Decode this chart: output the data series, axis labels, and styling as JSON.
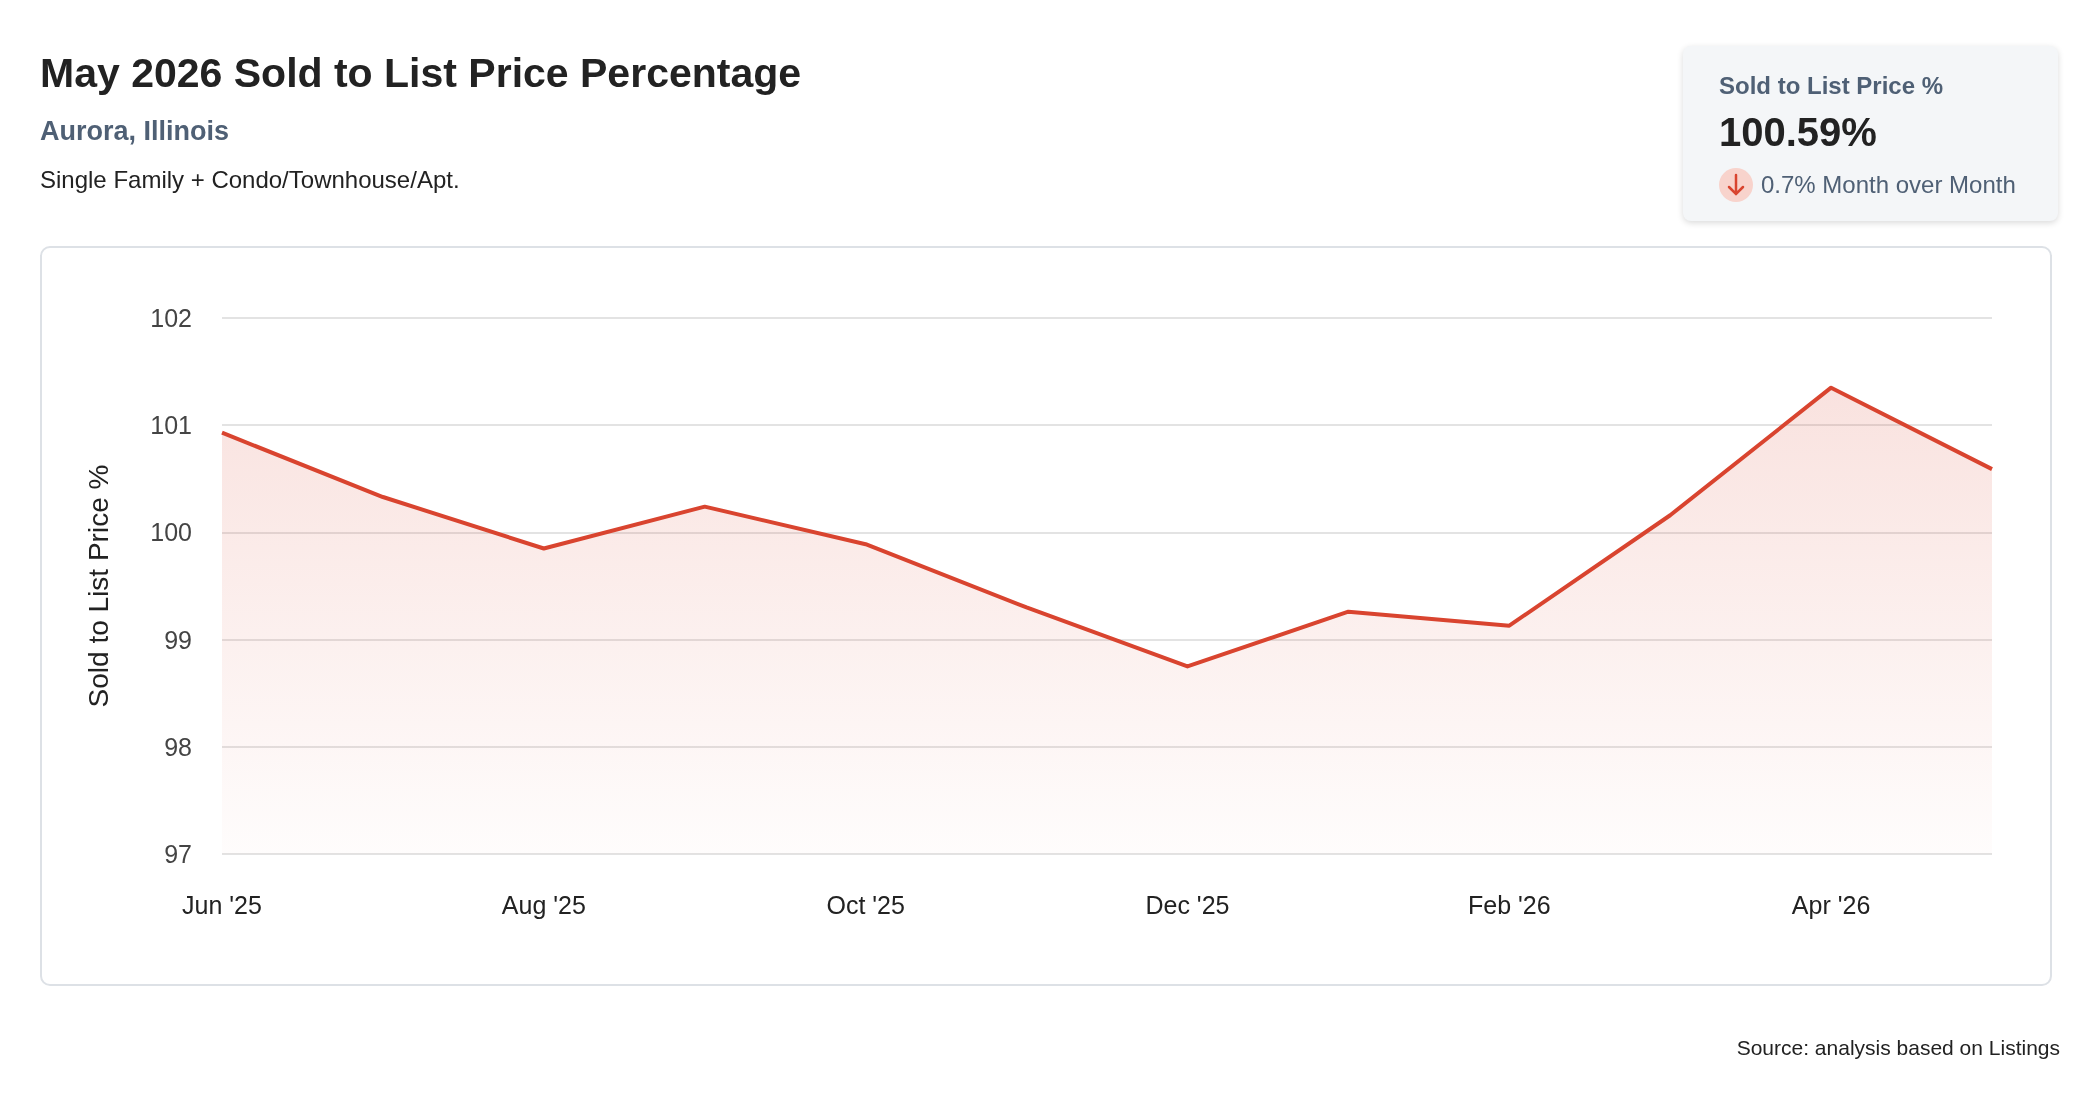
{
  "chart_data": {
    "type": "area",
    "title": "May 2026 Sold to List Price Percentage",
    "subtitle": "Aurora, Illinois",
    "annotations": [
      "Single Family + Condo/Townhouse/Apt.",
      "Sold to List Price %",
      "100.59%",
      "0.7% Month over Month",
      "Source: analysis based on Listings"
    ],
    "ylabel": "Sold to List Price %",
    "categories": [
      "Jun '25",
      null,
      "Aug '25",
      null,
      "Oct '25",
      null,
      "Dec '25",
      null,
      "Feb '26",
      null,
      "Apr '26",
      null
    ],
    "series": [
      {
        "color": "#d9442f",
        "values": [
          100.93,
          100.33,
          99.85,
          100.24,
          99.89,
          99.3,
          98.75,
          99.26,
          99.13,
          100.16,
          101.35,
          100.59
        ]
      }
    ],
    "ylim": [
      97,
      102
    ],
    "yticks": [
      97,
      98,
      99,
      100,
      101,
      102
    ],
    "grid": "y",
    "marker": "none",
    "line_style": "solid"
  }
}
